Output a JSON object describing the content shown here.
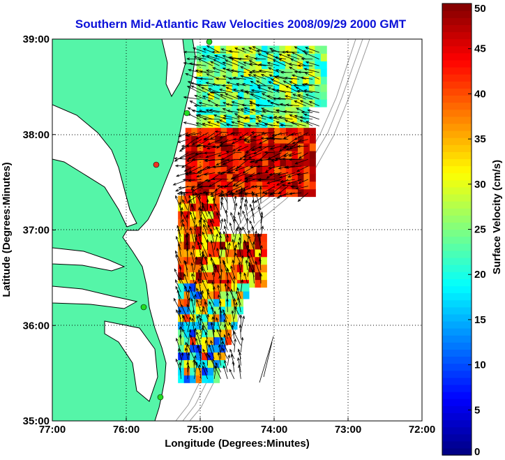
{
  "chart_data": {
    "type": "heatmap",
    "title": "Southern Mid-Atlantic Raw Velocities 2008/09/29 2000 GMT",
    "xlabel": "Longitude (Degrees:Minutes)",
    "ylabel": "Latitude (Degrees:Minutes)",
    "xlim": [
      -77,
      -72
    ],
    "ylim": [
      35,
      39
    ],
    "x_ticks": [
      {
        "value": -77,
        "label": "77:00"
      },
      {
        "value": -76,
        "label": "76:00"
      },
      {
        "value": -75,
        "label": "75:00"
      },
      {
        "value": -74,
        "label": "74:00"
      },
      {
        "value": -73,
        "label": "73:00"
      },
      {
        "value": -72,
        "label": "72:00"
      }
    ],
    "y_ticks": [
      {
        "value": 35,
        "label": "35:00"
      },
      {
        "value": 36,
        "label": "36:00"
      },
      {
        "value": 37,
        "label": "37:00"
      },
      {
        "value": 38,
        "label": "38:00"
      },
      {
        "value": 39,
        "label": "39:00"
      }
    ],
    "grid": true,
    "colorbar": {
      "label": "Surface Velocity (cm/s)",
      "range": [
        0,
        50
      ],
      "ticks": [
        {
          "value": 0,
          "label": "0"
        },
        {
          "value": 5,
          "label": "5"
        },
        {
          "value": 10,
          "label": "10"
        },
        {
          "value": 15,
          "label": "15"
        },
        {
          "value": 20,
          "label": "20"
        },
        {
          "value": 25,
          "label": "25"
        },
        {
          "value": 30,
          "label": "30"
        },
        {
          "value": 35,
          "label": "35"
        },
        {
          "value": 40,
          "label": "40"
        },
        {
          "value": 45,
          "label": "45"
        },
        {
          "value": 50,
          "label": "50"
        }
      ],
      "colormap": "jet",
      "placement": "right"
    },
    "land_color": "#55f5a8",
    "coastline_color": "#000000",
    "bathymetry_color": "#9a9a9a",
    "station_color": "#22dd22",
    "vector_color": "#000000",
    "regions": [
      {
        "name": "north",
        "lon": [
          -75.05,
          -73.35
        ],
        "lat": [
          38.05,
          38.88
        ],
        "speed_range": [
          18,
          32
        ]
      },
      {
        "name": "central",
        "lon": [
          -75.2,
          -73.5
        ],
        "lat": [
          37.35,
          38.05
        ],
        "speed_range": [
          38,
          50
        ]
      },
      {
        "name": "south-central",
        "lon": [
          -75.3,
          -74.15
        ],
        "lat": [
          36.4,
          37.35
        ],
        "speed_range": [
          28,
          50
        ]
      },
      {
        "name": "south",
        "lon": [
          -75.3,
          -74.4
        ],
        "lat": [
          35.4,
          36.4
        ],
        "speed_range": [
          8,
          42
        ]
      }
    ]
  }
}
